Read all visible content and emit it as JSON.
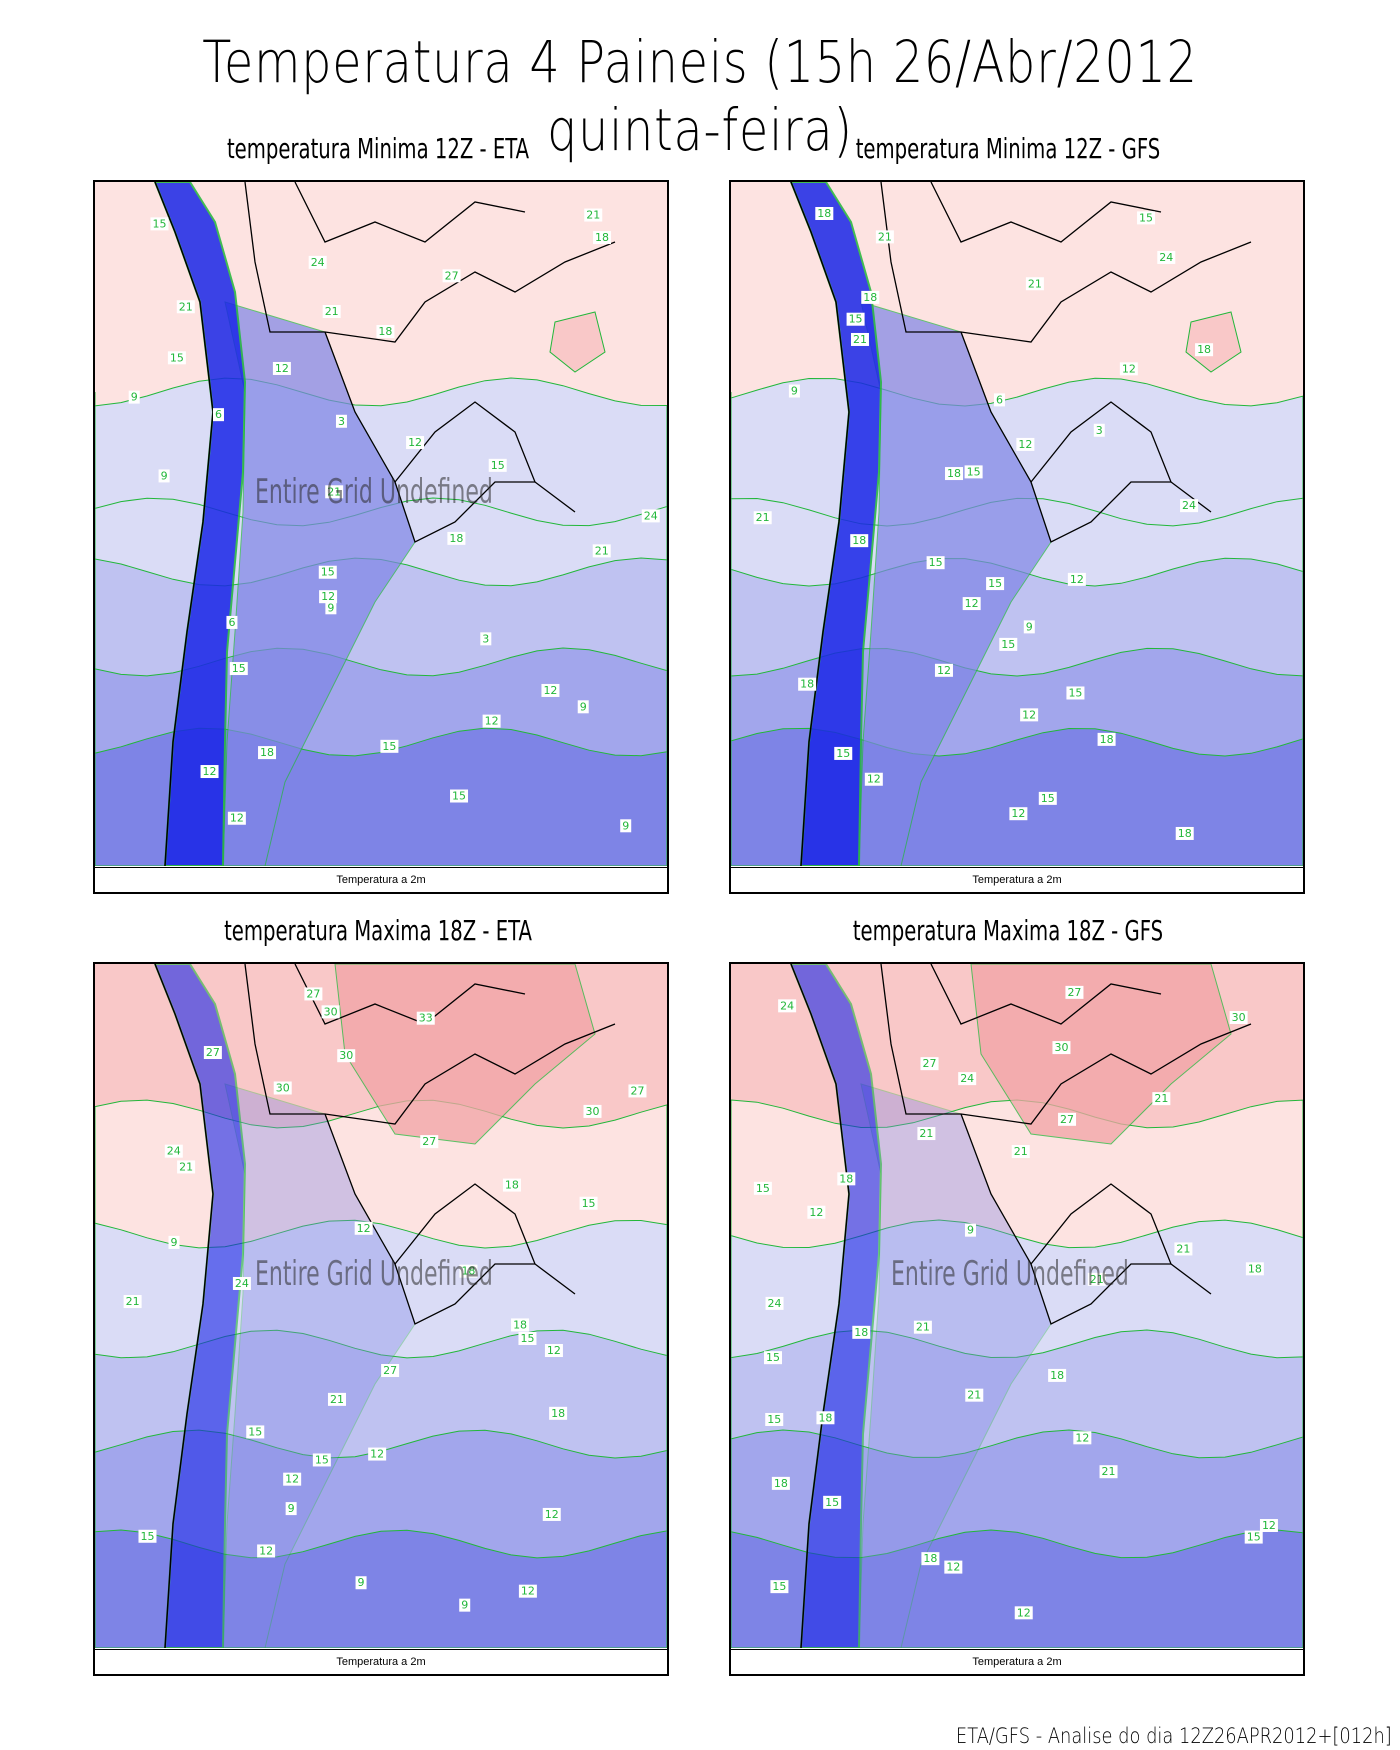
{
  "title": "Temperatura 4 Paineis (15h 26/Abr/2012 quinta-feira)",
  "footer": "ETA/GFS - Analise do dia 12Z26APR2012+[012h]",
  "colors": {
    "warm_strong": "#f2a3a6",
    "warm_mid": "#f9c8c8",
    "warm_light": "#fde3e1",
    "cool_light": "#dadcf6",
    "cool_mid": "#bfc2f1",
    "cool_strong": "#a2a6ec",
    "cool_deep": "#7e84e6",
    "cool_deeper": "#5a60e0",
    "andes_blue": "#1a26e8",
    "contour_line": "#22b73a",
    "label_text": "#22b73a",
    "border_line": "#000000"
  },
  "panels": [
    {
      "title": "temperatura Minima 12Z - ETA",
      "footer": "Temperatura a 2m",
      "overlay": "Entire Grid Undefined",
      "labels": [
        "21",
        "15",
        "18",
        "24",
        "27",
        "21",
        "21",
        "18",
        "15",
        "12",
        "9",
        "6",
        "3",
        "12",
        "15",
        "9",
        "21",
        "24",
        "18",
        "21",
        "15",
        "12",
        "9",
        "6",
        "3",
        "15",
        "12",
        "9",
        "12",
        "15",
        "18",
        "12",
        "15",
        "12",
        "9"
      ]
    },
    {
      "title": "temperatura Minima 12Z - GFS",
      "footer": "Temperatura a 2m",
      "overlay": "",
      "labels": [
        "18",
        "15",
        "21",
        "24",
        "21",
        "18",
        "15",
        "21",
        "18",
        "12",
        "9",
        "6",
        "3",
        "12",
        "15",
        "18",
        "24",
        "21",
        "18",
        "15",
        "12",
        "15",
        "12",
        "9",
        "15",
        "12",
        "18",
        "15",
        "12",
        "18",
        "15",
        "12",
        "15",
        "12",
        "18"
      ]
    },
    {
      "title": "temperatura Maxima 18Z - ETA",
      "footer": "Temperatura a 2m",
      "overlay": "Entire Grid Undefined",
      "labels": [
        "27",
        "30",
        "33",
        "27",
        "30",
        "30",
        "27",
        "30",
        "27",
        "24",
        "21",
        "18",
        "15",
        "12",
        "9",
        "18",
        "24",
        "21",
        "18",
        "15",
        "12",
        "27",
        "21",
        "18",
        "15",
        "12",
        "15",
        "12",
        "9",
        "12",
        "15",
        "12",
        "9",
        "12",
        "9"
      ]
    },
    {
      "title": "temperatura Maxima 18Z - GFS",
      "footer": "Temperatura a 2m",
      "overlay": "Entire Grid Undefined",
      "labels": [
        "27",
        "24",
        "30",
        "30",
        "27",
        "24",
        "21",
        "27",
        "21",
        "21",
        "18",
        "15",
        "12",
        "9",
        "21",
        "18",
        "21",
        "24",
        "21",
        "18",
        "15",
        "18",
        "21",
        "18",
        "15",
        "12",
        "21",
        "18",
        "15",
        "12",
        "15",
        "18",
        "12",
        "15",
        "12"
      ]
    }
  ]
}
